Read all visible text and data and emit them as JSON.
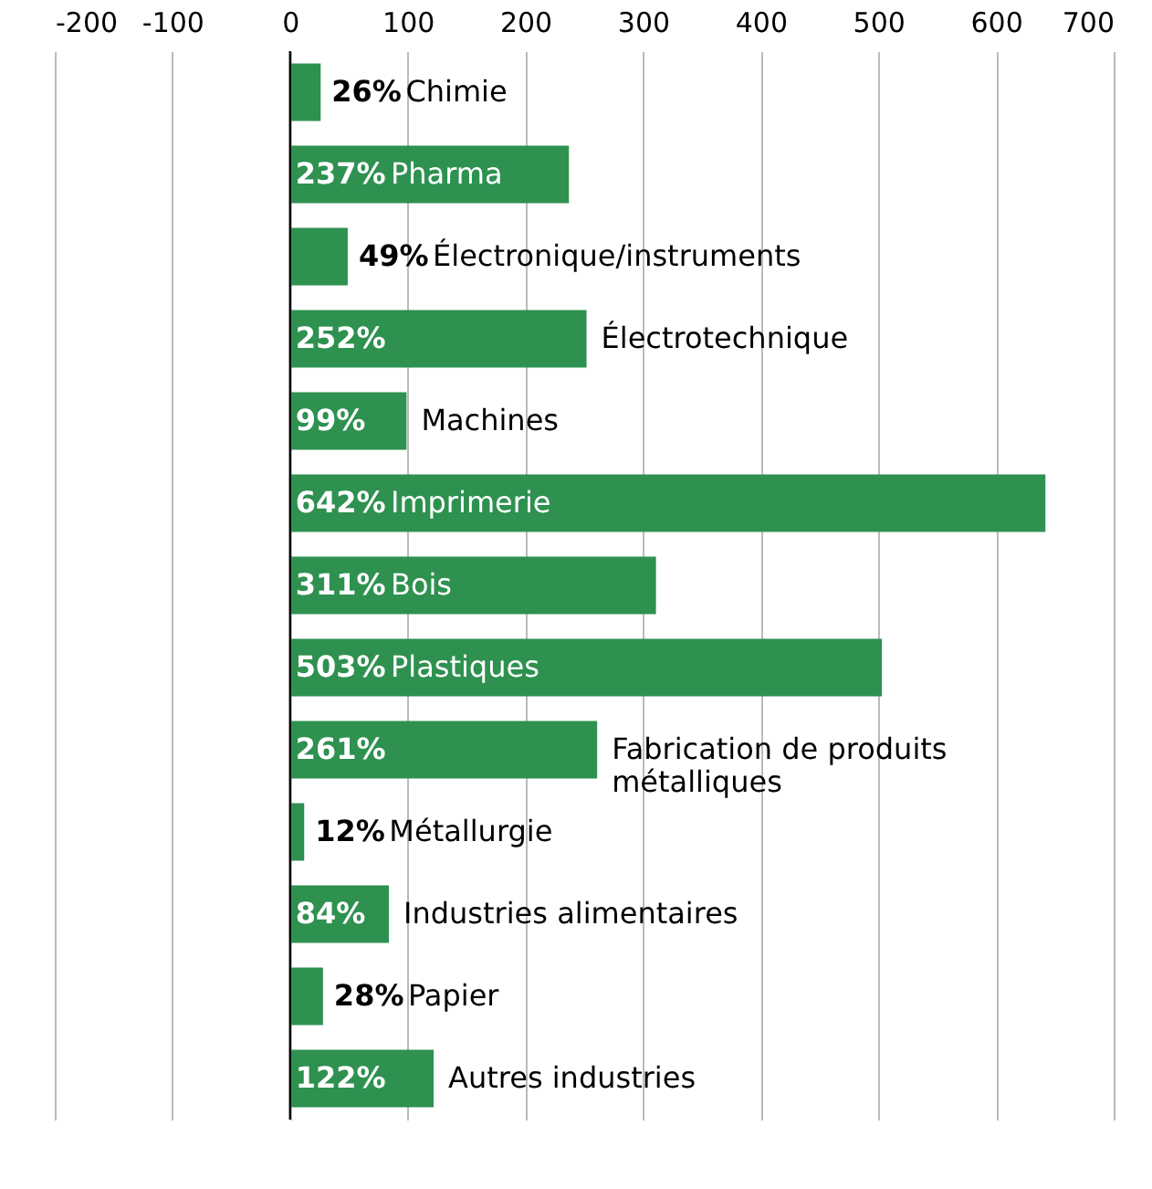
{
  "chart_data": {
    "type": "bar",
    "orientation": "horizontal",
    "categories": [
      "Chimie",
      "Pharma",
      "Électronique/instruments",
      "Électrotechnique",
      "Machines",
      "Imprimerie",
      "Bois",
      "Plastiques",
      "Fabrication de produits métalliques",
      "Métallurgie",
      "Industries alimentaires",
      "Papier",
      "Autres industries"
    ],
    "values": [
      26,
      237,
      49,
      252,
      99,
      642,
      311,
      503,
      261,
      12,
      84,
      28,
      122
    ],
    "value_labels": [
      "26%",
      "237%",
      "49%",
      "252%",
      "99%",
      "642%",
      "311%",
      "503%",
      "261%",
      "12%",
      "84%",
      "28%",
      "122%"
    ],
    "color": "#2e9150",
    "xlim": [
      -200,
      700
    ],
    "xticks": [
      -200,
      -100,
      0,
      100,
      200,
      300,
      400,
      500,
      600,
      700
    ],
    "grid": "x",
    "tick_labels": "x"
  }
}
